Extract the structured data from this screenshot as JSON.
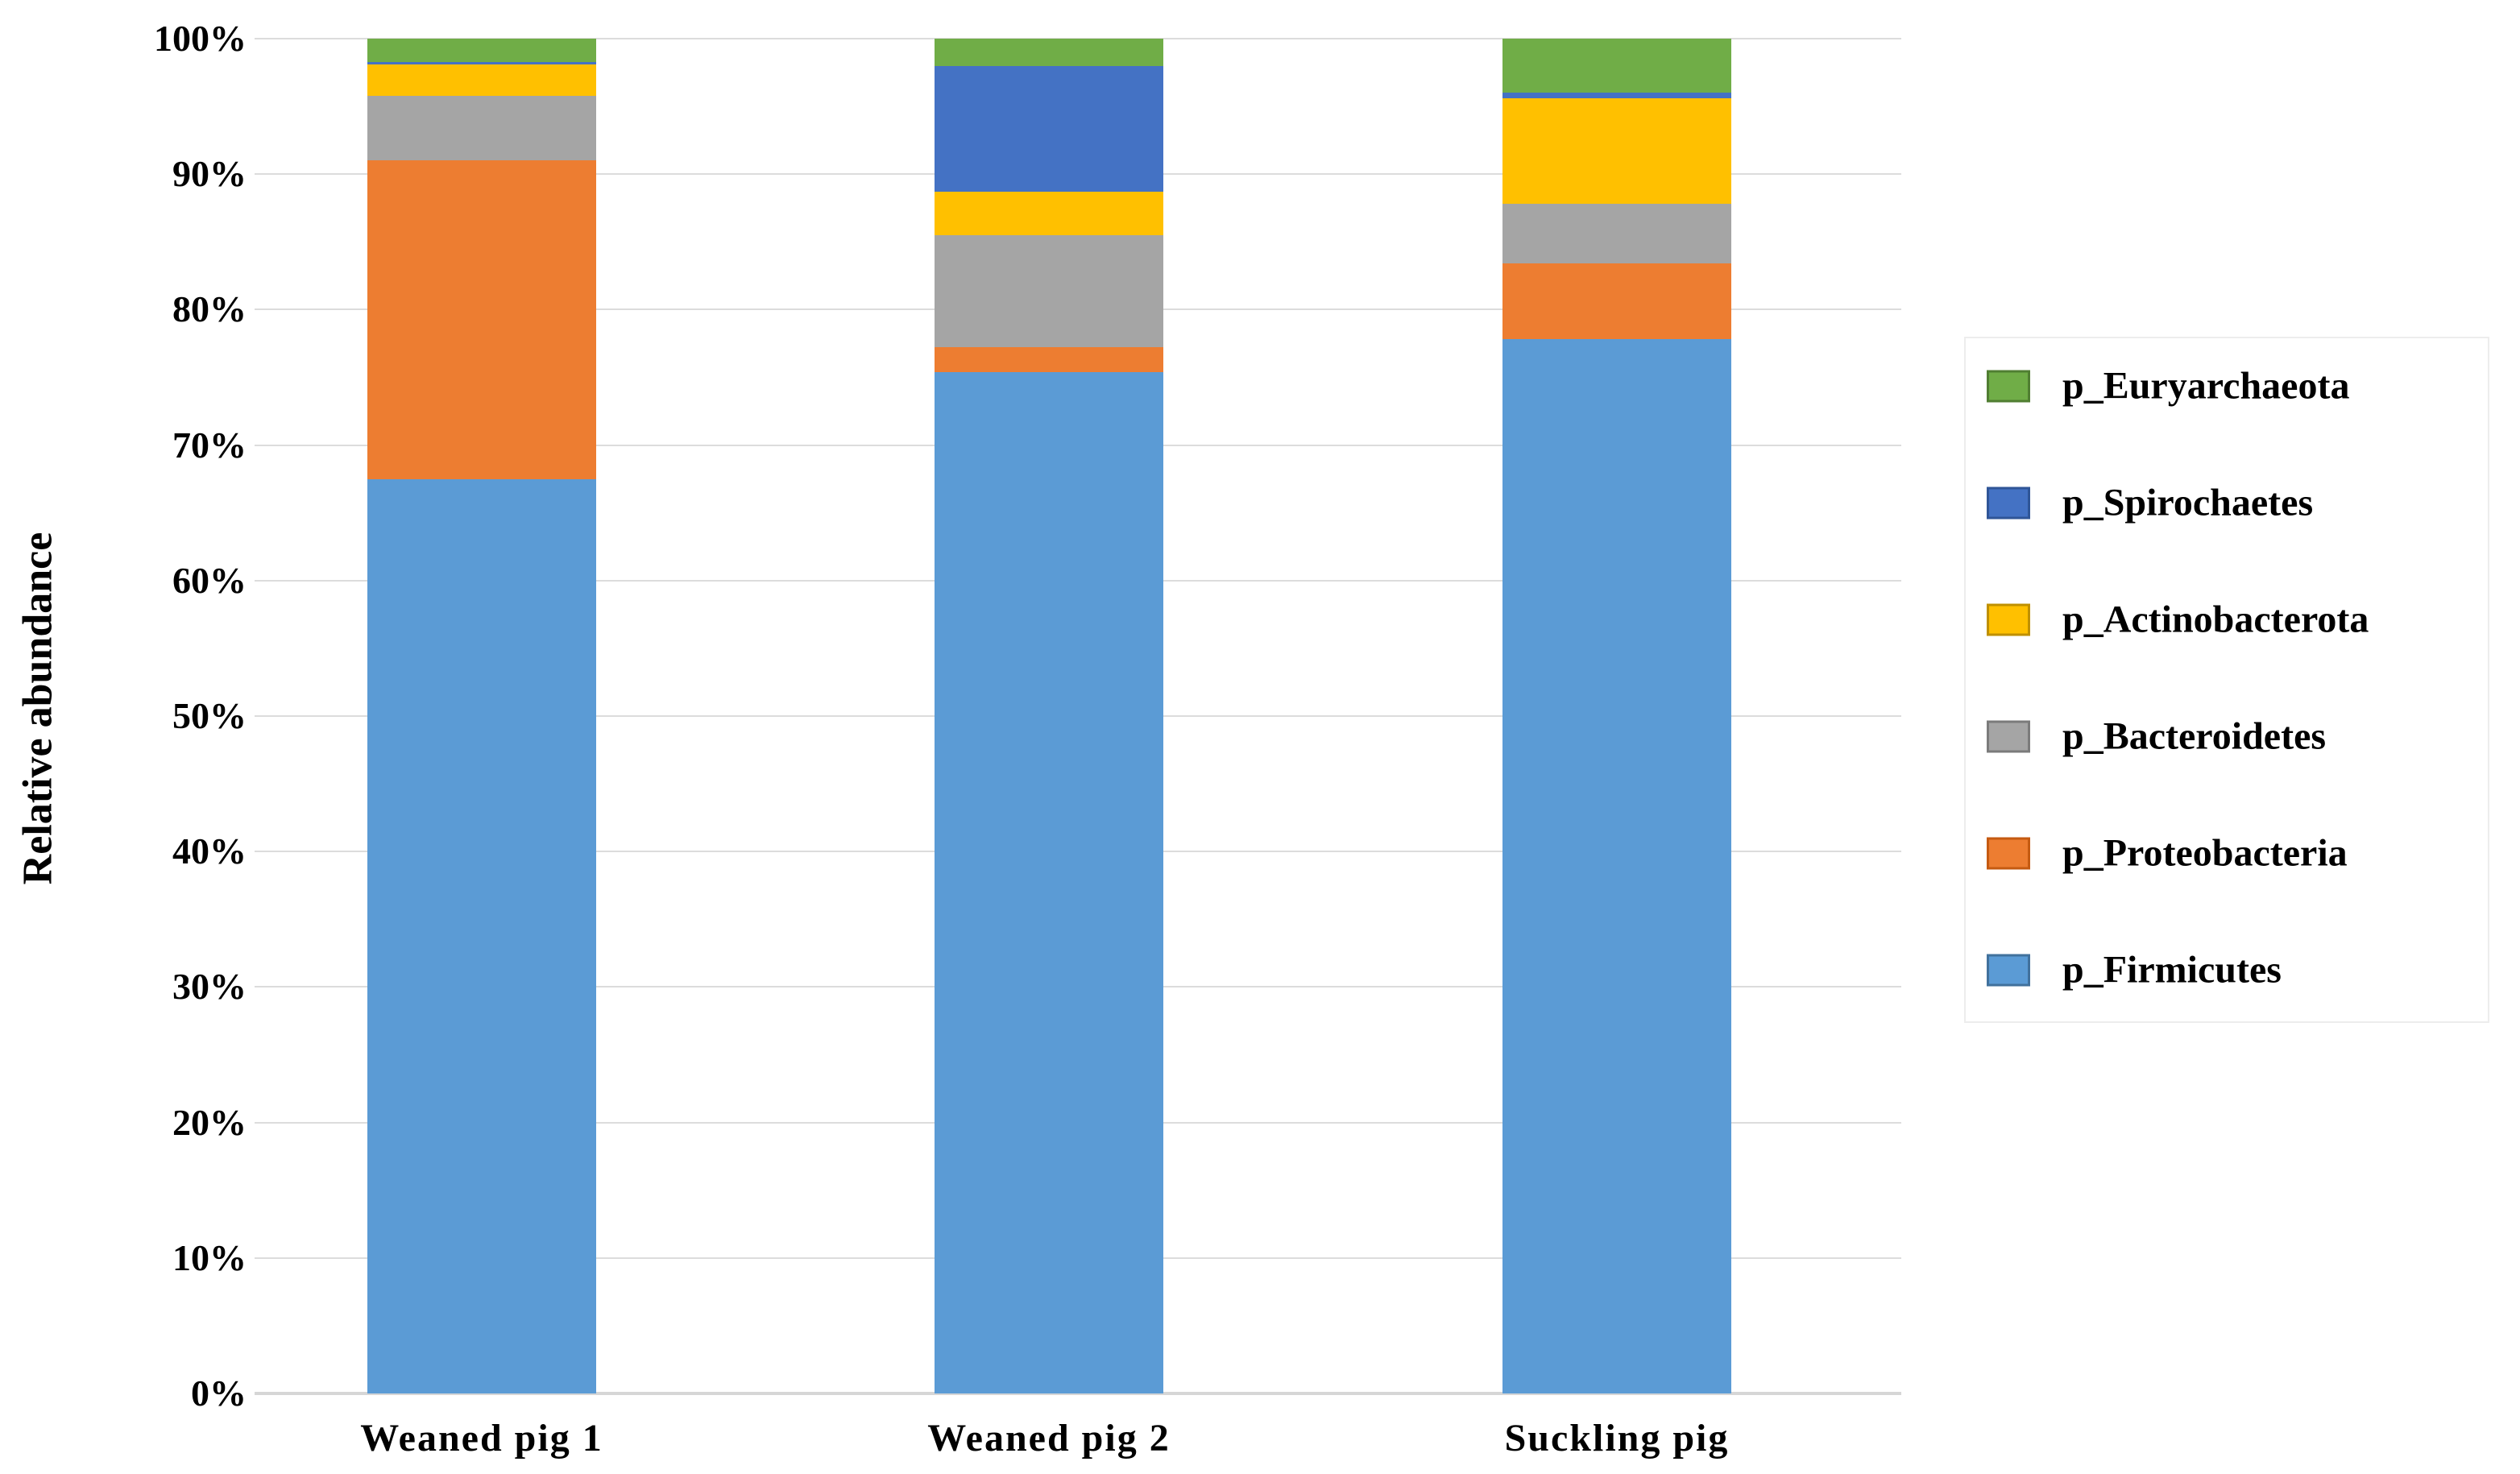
{
  "chart_data": {
    "type": "bar",
    "stacked": true,
    "percent_stacked": true,
    "title": "",
    "xlabel": "",
    "ylabel": "Relative abundance",
    "ylim": [
      0,
      100
    ],
    "y_tick_step": 10,
    "y_tick_labels": [
      "0%",
      "10%",
      "20%",
      "30%",
      "40%",
      "50%",
      "60%",
      "70%",
      "80%",
      "90%",
      "100%"
    ],
    "grid": true,
    "legend_position": "right",
    "categories": [
      "Weaned pig 1",
      "Weaned pig 2",
      "Suckling pig"
    ],
    "series": [
      {
        "name": "p_Firmicutes",
        "color": "#5b9bd5",
        "border_color": "#41719c",
        "values": [
          67.5,
          75.4,
          77.8
        ]
      },
      {
        "name": "p_Proteobacteria",
        "color": "#ed7d31",
        "border_color": "#c55a11",
        "values": [
          23.5,
          1.8,
          5.6
        ]
      },
      {
        "name": "p_Bacteroidetes",
        "color": "#a5a5a5",
        "border_color": "#7b7b7b",
        "values": [
          4.8,
          8.3,
          4.4
        ]
      },
      {
        "name": "p_Actinobacterota",
        "color": "#ffc000",
        "border_color": "#bf9000",
        "values": [
          2.3,
          3.2,
          7.8
        ]
      },
      {
        "name": "p_Spirochaetes",
        "color": "#4472c4",
        "border_color": "#2f5597",
        "values": [
          0.2,
          9.3,
          0.4
        ]
      },
      {
        "name": "p_Euryarchaeota",
        "color": "#70ad47",
        "border_color": "#507e32",
        "values": [
          1.7,
          2.0,
          4.0
        ]
      }
    ],
    "legend_order_top_to_bottom": [
      "p_Euryarchaeota",
      "p_Spirochaetes",
      "p_Actinobacterota",
      "p_Bacteroidetes",
      "p_Proteobacteria",
      "p_Firmicutes"
    ],
    "gridline_color": "#dcdcdc"
  }
}
